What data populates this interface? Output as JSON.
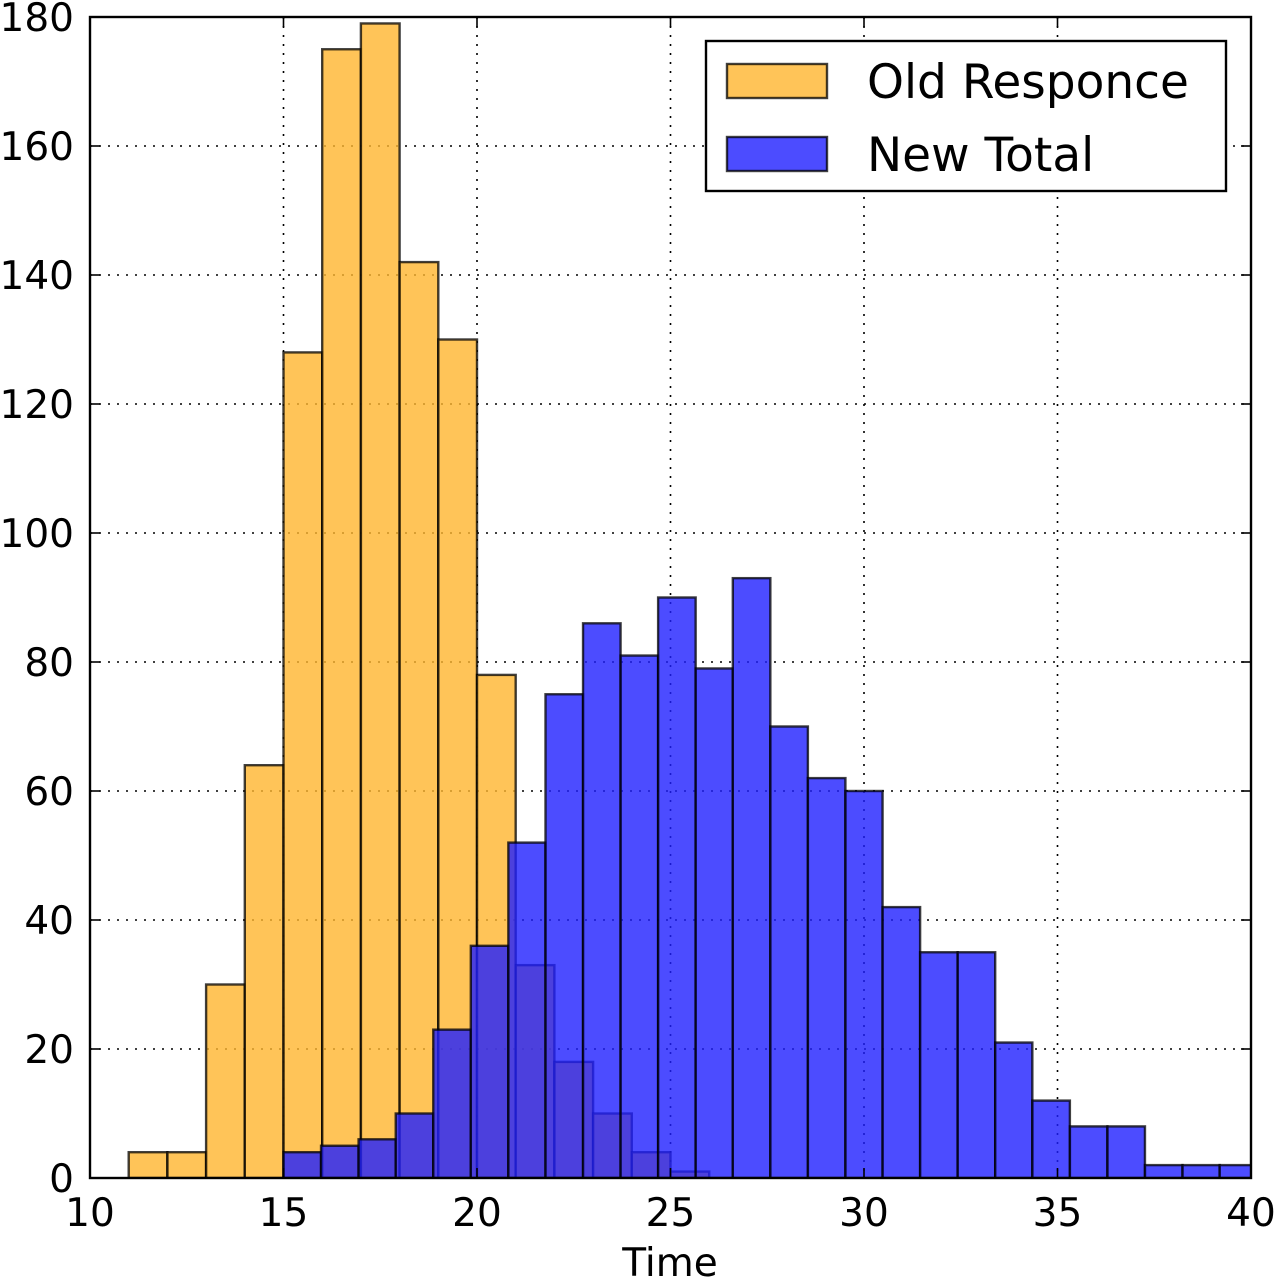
{
  "chart_data": {
    "type": "bar",
    "title": "",
    "xlabel": "Time",
    "ylabel": "",
    "xlim": [
      10,
      40
    ],
    "ylim": [
      0,
      180
    ],
    "xticks": [
      10,
      15,
      20,
      25,
      30,
      35,
      40
    ],
    "yticks": [
      0,
      20,
      40,
      60,
      80,
      100,
      120,
      140,
      160,
      180
    ],
    "grid": true,
    "legend_position": "top-right",
    "series": [
      {
        "name": "Old Responce",
        "color": "#ffb52e",
        "bins": [
          {
            "x0": 11,
            "x1": 12,
            "count": 4
          },
          {
            "x0": 12,
            "x1": 13,
            "count": 4
          },
          {
            "x0": 13,
            "x1": 14,
            "count": 30
          },
          {
            "x0": 14,
            "x1": 15,
            "count": 64
          },
          {
            "x0": 15,
            "x1": 16,
            "count": 128
          },
          {
            "x0": 16,
            "x1": 17,
            "count": 175
          },
          {
            "x0": 17,
            "x1": 18,
            "count": 179
          },
          {
            "x0": 18,
            "x1": 19,
            "count": 142
          },
          {
            "x0": 19,
            "x1": 20,
            "count": 130
          },
          {
            "x0": 20,
            "x1": 21,
            "count": 78
          },
          {
            "x0": 21,
            "x1": 22,
            "count": 33
          },
          {
            "x0": 22,
            "x1": 23,
            "count": 18
          },
          {
            "x0": 23,
            "x1": 24,
            "count": 10
          },
          {
            "x0": 24,
            "x1": 25,
            "count": 4
          },
          {
            "x0": 25,
            "x1": 26,
            "count": 1
          }
        ]
      },
      {
        "name": "New Total",
        "color": "#1f1fff",
        "bins": [
          {
            "x0": 15.0,
            "x1": 15.97,
            "count": 4
          },
          {
            "x0": 15.97,
            "x1": 16.94,
            "count": 5
          },
          {
            "x0": 16.94,
            "x1": 17.9,
            "count": 6
          },
          {
            "x0": 17.9,
            "x1": 18.87,
            "count": 10
          },
          {
            "x0": 18.87,
            "x1": 19.84,
            "count": 23
          },
          {
            "x0": 19.84,
            "x1": 20.81,
            "count": 36
          },
          {
            "x0": 20.81,
            "x1": 21.77,
            "count": 52
          },
          {
            "x0": 21.77,
            "x1": 22.74,
            "count": 75
          },
          {
            "x0": 22.74,
            "x1": 23.71,
            "count": 86
          },
          {
            "x0": 23.71,
            "x1": 24.68,
            "count": 81
          },
          {
            "x0": 24.68,
            "x1": 25.65,
            "count": 90
          },
          {
            "x0": 25.65,
            "x1": 26.61,
            "count": 79
          },
          {
            "x0": 26.61,
            "x1": 27.58,
            "count": 93
          },
          {
            "x0": 27.58,
            "x1": 28.55,
            "count": 70
          },
          {
            "x0": 28.55,
            "x1": 29.52,
            "count": 62
          },
          {
            "x0": 29.52,
            "x1": 30.48,
            "count": 60
          },
          {
            "x0": 30.48,
            "x1": 31.45,
            "count": 42
          },
          {
            "x0": 31.45,
            "x1": 32.42,
            "count": 35
          },
          {
            "x0": 32.42,
            "x1": 33.39,
            "count": 35
          },
          {
            "x0": 33.39,
            "x1": 34.35,
            "count": 21
          },
          {
            "x0": 34.35,
            "x1": 35.32,
            "count": 12
          },
          {
            "x0": 35.32,
            "x1": 36.29,
            "count": 8
          },
          {
            "x0": 36.29,
            "x1": 37.26,
            "count": 8
          },
          {
            "x0": 37.26,
            "x1": 38.23,
            "count": 2
          },
          {
            "x0": 38.23,
            "x1": 39.19,
            "count": 2
          },
          {
            "x0": 39.19,
            "x1": 40.16,
            "count": 2
          }
        ]
      }
    ]
  }
}
